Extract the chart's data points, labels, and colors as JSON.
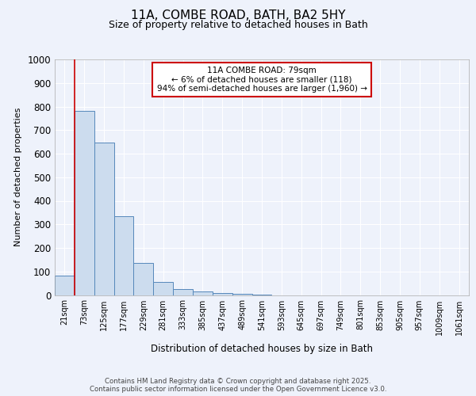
{
  "title1": "11A, COMBE ROAD, BATH, BA2 5HY",
  "title2": "Size of property relative to detached houses in Bath",
  "xlabel": "Distribution of detached houses by size in Bath",
  "ylabel": "Number of detached properties",
  "bar_color": "#ccdcee",
  "bar_edge_color": "#5588bb",
  "categories": [
    "21sqm",
    "73sqm",
    "125sqm",
    "177sqm",
    "229sqm",
    "281sqm",
    "333sqm",
    "385sqm",
    "437sqm",
    "489sqm",
    "541sqm",
    "593sqm",
    "645sqm",
    "697sqm",
    "749sqm",
    "801sqm",
    "853sqm",
    "905sqm",
    "957sqm",
    "1009sqm",
    "1061sqm"
  ],
  "values": [
    83,
    783,
    648,
    335,
    135,
    57,
    25,
    15,
    10,
    5,
    2,
    0,
    0,
    0,
    0,
    0,
    0,
    0,
    0,
    0,
    0
  ],
  "ylim": [
    0,
    1000
  ],
  "yticks": [
    0,
    100,
    200,
    300,
    400,
    500,
    600,
    700,
    800,
    900,
    1000
  ],
  "red_line_bin": 1,
  "annotation_text": "11A COMBE ROAD: 79sqm\n← 6% of detached houses are smaller (118)\n94% of semi-detached houses are larger (1,960) →",
  "annotation_box_facecolor": "#ffffff",
  "annotation_box_edgecolor": "#cc0000",
  "footer_text": "Contains HM Land Registry data © Crown copyright and database right 2025.\nContains public sector information licensed under the Open Government Licence v3.0.",
  "background_color": "#eef2fb",
  "grid_color": "#d0d8ee"
}
